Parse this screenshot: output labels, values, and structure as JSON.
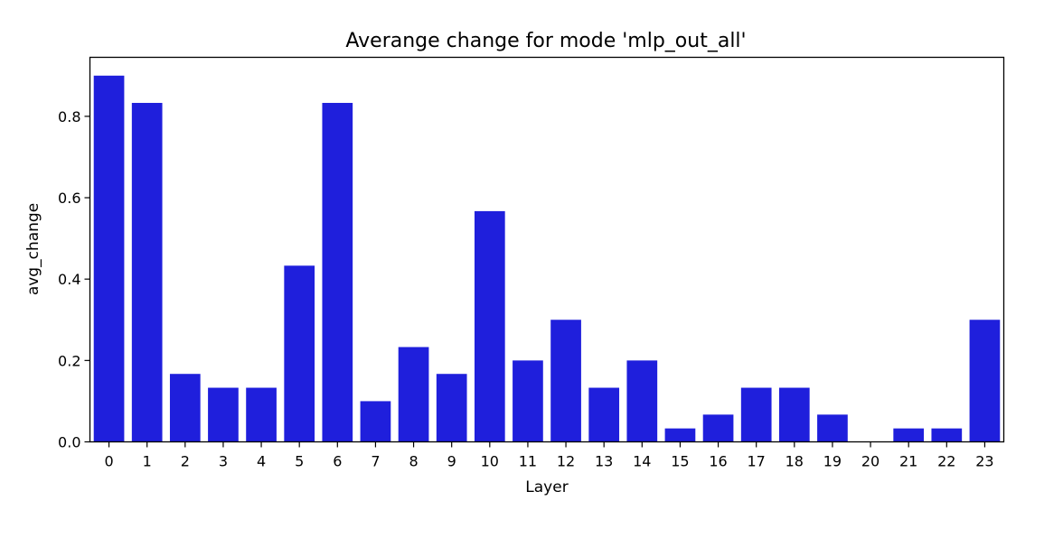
{
  "chart_data": {
    "type": "bar",
    "title": "Averange change for mode 'mlp_out_all'",
    "xlabel": "Layer",
    "ylabel": "avg_change",
    "categories": [
      "0",
      "1",
      "2",
      "3",
      "4",
      "5",
      "6",
      "7",
      "8",
      "9",
      "10",
      "11",
      "12",
      "13",
      "14",
      "15",
      "16",
      "17",
      "18",
      "19",
      "20",
      "21",
      "22",
      "23"
    ],
    "values": [
      0.9,
      0.833,
      0.167,
      0.133,
      0.133,
      0.433,
      0.833,
      0.1,
      0.233,
      0.167,
      0.567,
      0.2,
      0.3,
      0.133,
      0.2,
      0.033,
      0.067,
      0.133,
      0.133,
      0.067,
      0.0,
      0.033,
      0.033,
      0.3
    ],
    "yticks": [
      "0.0",
      "0.2",
      "0.4",
      "0.6",
      "0.8"
    ],
    "ylim": [
      0,
      0.945
    ],
    "bar_color": "#1f1fdc",
    "grid": false,
    "legend": "none"
  }
}
